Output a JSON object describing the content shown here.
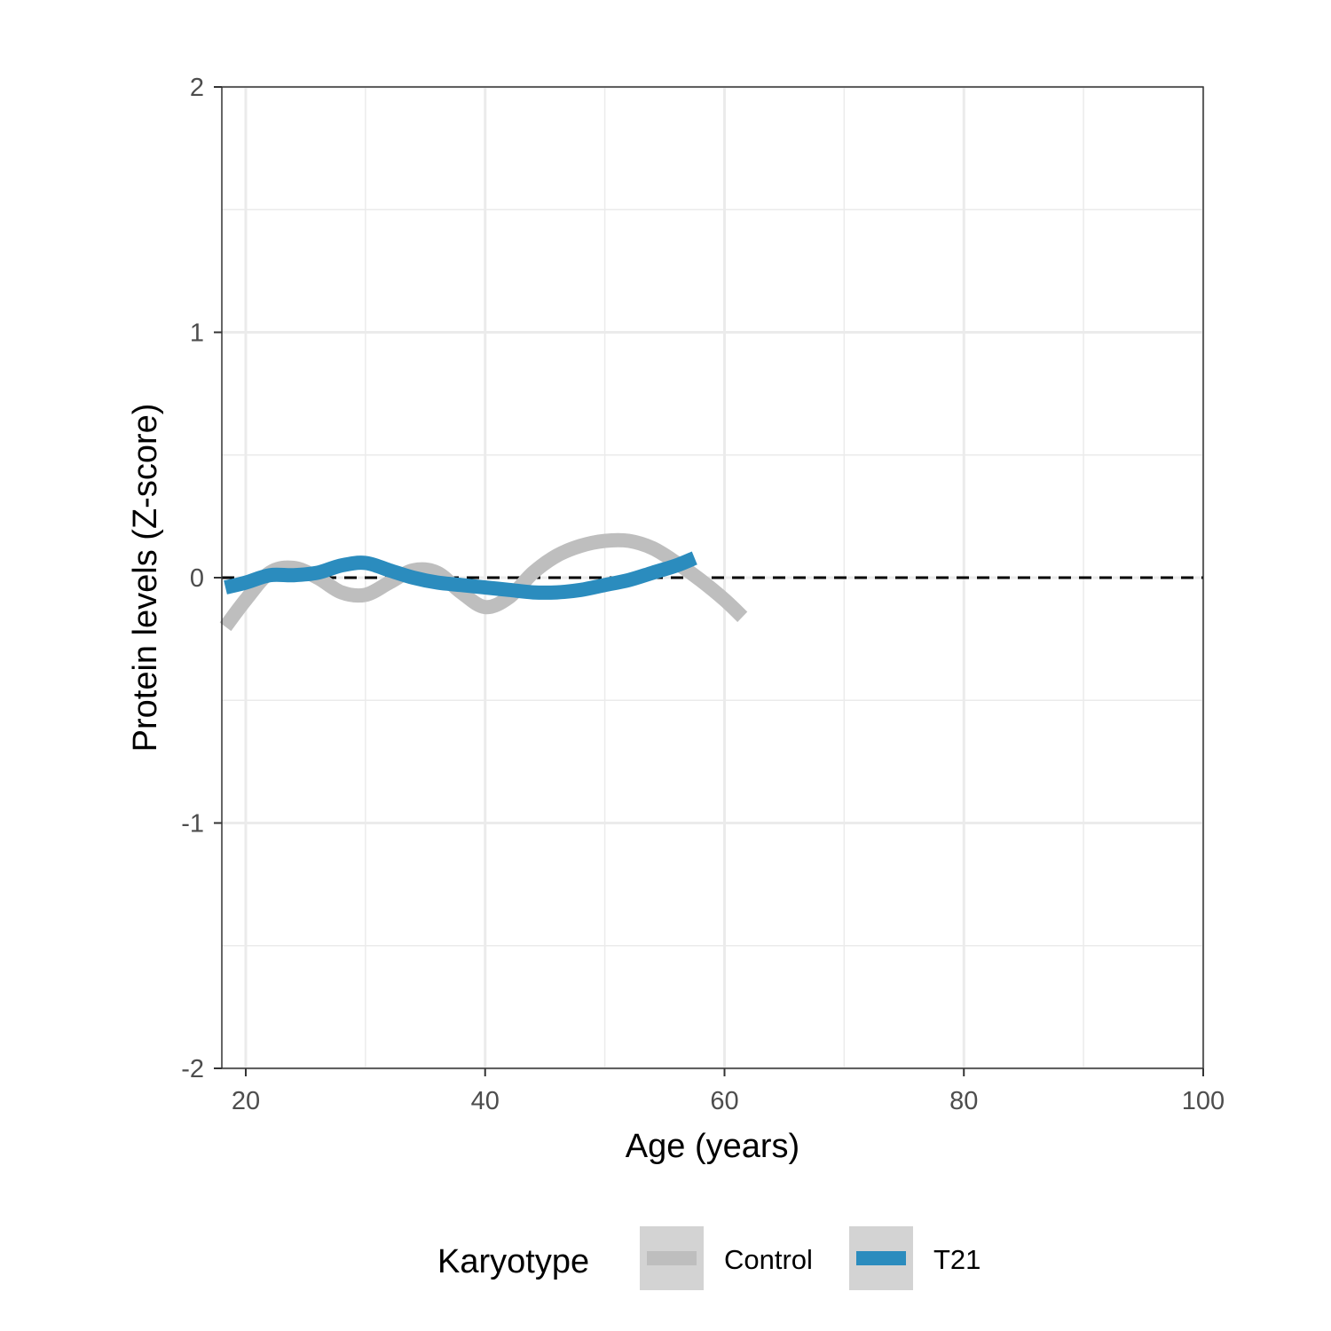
{
  "chart_data": {
    "type": "line",
    "xlabel": "Age (years)",
    "ylabel": "Protein levels (Z-score)",
    "xlim": [
      18,
      100
    ],
    "ylim": [
      -2,
      2
    ],
    "x_ticks": [
      20,
      40,
      60,
      80,
      100
    ],
    "y_ticks": [
      -2,
      -1,
      0,
      1,
      2
    ],
    "x_tick_labels": [
      "20",
      "40",
      "60",
      "80",
      "100"
    ],
    "y_tick_labels": [
      "-2",
      "-1",
      "0",
      "1",
      "2"
    ],
    "grid": true,
    "reference_line": {
      "y": 0,
      "style": "dashed",
      "color": "#000000"
    },
    "legend": {
      "title": "Karyotype",
      "position": "bottom"
    },
    "series": [
      {
        "name": "Control",
        "color": "#bebebe",
        "x": [
          18.3,
          20,
          22,
          24,
          26,
          28,
          30,
          32,
          34,
          36,
          38,
          40,
          42,
          44,
          46,
          48,
          50,
          52,
          54,
          56,
          58,
          60,
          61.5
        ],
        "y": [
          -0.2,
          -0.09,
          0.02,
          0.04,
          0.0,
          -0.06,
          -0.07,
          -0.02,
          0.03,
          0.02,
          -0.06,
          -0.12,
          -0.08,
          0.02,
          0.09,
          0.13,
          0.15,
          0.15,
          0.12,
          0.06,
          -0.01,
          -0.09,
          -0.16
        ]
      },
      {
        "name": "T21",
        "color": "#2b8cbe",
        "x": [
          18.3,
          20,
          22,
          24,
          26,
          28,
          30,
          32,
          34,
          36,
          38,
          40,
          42,
          44,
          46,
          48,
          50,
          52,
          54,
          56,
          57.5
        ],
        "y": [
          -0.04,
          -0.02,
          0.01,
          0.01,
          0.02,
          0.05,
          0.06,
          0.03,
          0.0,
          -0.02,
          -0.03,
          -0.04,
          -0.05,
          -0.06,
          -0.06,
          -0.05,
          -0.03,
          -0.01,
          0.02,
          0.05,
          0.08
        ]
      }
    ]
  }
}
